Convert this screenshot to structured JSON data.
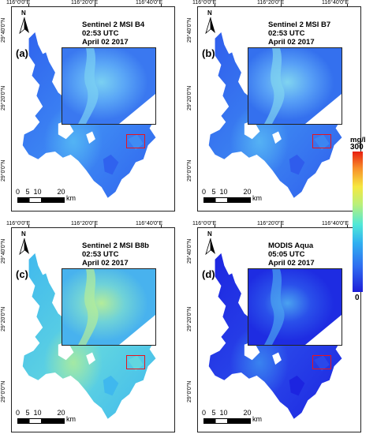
{
  "colors": {
    "red_box": "#e8141c",
    "cb_low": "#1d1dd8",
    "cb_mid": "#4fe8d8",
    "cb_high": "#e81e10"
  },
  "colorbar": {
    "unit": "mg/l",
    "max": "300",
    "min": "0"
  },
  "panels": [
    {
      "id": "a",
      "label": "(a)",
      "title_line1": "Sentinel 2 MSI B4",
      "title_line2": "02:53 UTC",
      "title_line3": "April 02 2017",
      "lon_left": "116°0'0\"E",
      "lon_mid": "116°20'0\"E",
      "lon_right": "116°40'0\"E",
      "lat_top": "29°40'0\"N",
      "lat_mid": "29°20'0\"N",
      "lat_bottom": "29°0'0\"N",
      "scale_numbers": "0   5  10        20",
      "scale_unit": "km",
      "north_letter": "N",
      "tone": "b4"
    },
    {
      "id": "b",
      "label": "(b)",
      "title_line1": "Sentinel 2 MSI B7",
      "title_line2": "02:53 UTC",
      "title_line3": "April 02 2017",
      "lon_left": "116°0'0\"E",
      "lon_mid": "116°20'0\"E",
      "lon_right": "116°40'0\"E",
      "lat_top": "29°40'0\"N",
      "lat_mid": "29°20'0\"N",
      "lat_bottom": "29°0'0\"N",
      "scale_numbers": "0   5  10        20",
      "scale_unit": "km",
      "north_letter": "N",
      "tone": "b7"
    },
    {
      "id": "c",
      "label": "(c)",
      "title_line1": "Sentinel 2 MSI B8b",
      "title_line2": "02:53 UTC",
      "title_line3": "April 02 2017",
      "lon_left": "116°0'0\"E",
      "lon_mid": "116°20'0\"E",
      "lon_right": "116°40'0\"E",
      "lat_top": "29°40'0\"N",
      "lat_mid": "29°20'0\"N",
      "lat_bottom": "29°0'0\"N",
      "scale_numbers": "0   5  10        20",
      "scale_unit": "km",
      "north_letter": "N",
      "tone": "b8b"
    },
    {
      "id": "d",
      "label": "(d)",
      "title_line1": "MODIS Aqua",
      "title_line2": "05:05 UTC",
      "title_line3": "April 02 2017",
      "lon_left": "116°0'0\"E",
      "lon_mid": "116°20'0\"E",
      "lon_right": "116°40'0\"E",
      "lat_top": "29°40'0\"N",
      "lat_mid": "29°20'0\"N",
      "lat_bottom": "29°0'0\"N",
      "scale_numbers": "0   5  10        20",
      "scale_unit": "km",
      "north_letter": "N",
      "tone": "modis"
    }
  ]
}
